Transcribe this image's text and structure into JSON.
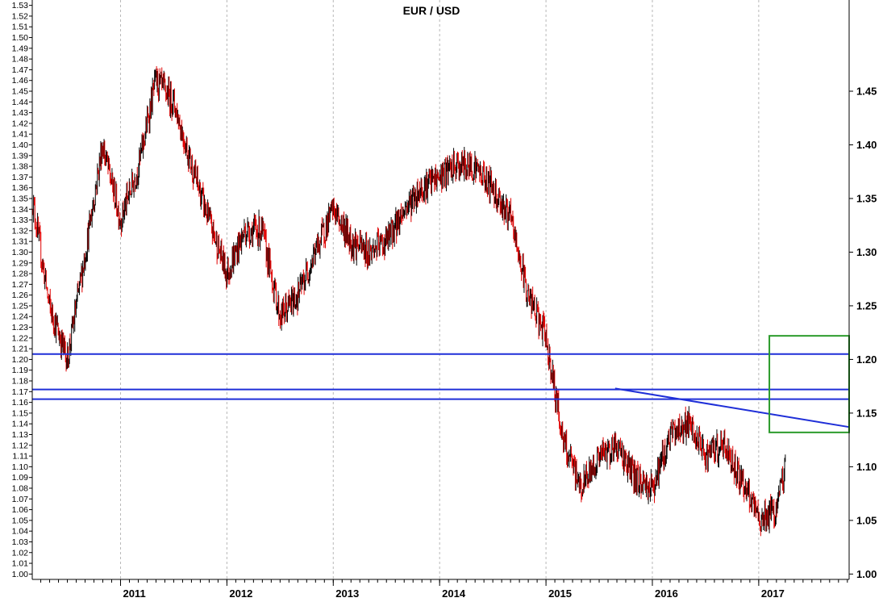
{
  "chart_data": {
    "type": "candlestick",
    "title": "EUR / USD",
    "xlabel": "",
    "ylabel": "",
    "ylim": [
      0.995,
      1.535
    ],
    "xlim": [
      2010.17,
      2017.85
    ],
    "grid": {
      "vertical": true,
      "horizontal": false
    },
    "colors": {
      "up": "#000000",
      "down": "#e00000",
      "support_lines": "#1f2fd8",
      "trendline": "#1f2fd8",
      "target_box": "#2a9a2a"
    },
    "y_ticks_left": [
      "1.00",
      "1.01",
      "1.02",
      "1.03",
      "1.04",
      "1.05",
      "1.06",
      "1.07",
      "1.08",
      "1.09",
      "1.10",
      "1.11",
      "1.12",
      "1.13",
      "1.14",
      "1.15",
      "1.16",
      "1.17",
      "1.18",
      "1.19",
      "1.20",
      "1.21",
      "1.22",
      "1.23",
      "1.24",
      "1.25",
      "1.26",
      "1.27",
      "1.28",
      "1.29",
      "1.30",
      "1.31",
      "1.32",
      "1.33",
      "1.34",
      "1.35",
      "1.36",
      "1.37",
      "1.38",
      "1.39",
      "1.40",
      "1.41",
      "1.42",
      "1.43",
      "1.44",
      "1.45",
      "1.46",
      "1.47",
      "1.48",
      "1.49",
      "1.50",
      "1.51",
      "1.52",
      "1.53"
    ],
    "y_ticks_right": [
      "1.00",
      "1.05",
      "1.10",
      "1.15",
      "1.20",
      "1.25",
      "1.30",
      "1.35",
      "1.40",
      "1.45"
    ],
    "x_ticks": [
      {
        "label": "2011",
        "x": 2011.0
      },
      {
        "label": "2012",
        "x": 2012.0
      },
      {
        "label": "2013",
        "x": 2013.0
      },
      {
        "label": "2014",
        "x": 2014.0
      },
      {
        "label": "2015",
        "x": 2015.0
      },
      {
        "label": "2016",
        "x": 2016.0
      },
      {
        "label": "2017",
        "x": 2017.0
      }
    ],
    "horizontal_lines": [
      1.205,
      1.172,
      1.163
    ],
    "trendline": {
      "x": [
        2015.65,
        2017.85
      ],
      "y": [
        1.173,
        1.137
      ]
    },
    "target_box": {
      "x": [
        2017.1,
        2017.85
      ],
      "y": [
        1.132,
        1.222
      ]
    },
    "series": [
      {
        "x": [
          2010.17,
          2010.33,
          2010.5,
          2010.67,
          2010.83,
          2011.0,
          2011.17,
          2011.33,
          2011.5,
          2011.67,
          2011.83,
          2012.0,
          2012.17,
          2012.33,
          2012.5,
          2012.67,
          2012.83,
          2013.0,
          2013.17,
          2013.33,
          2013.5,
          2013.67,
          2013.83,
          2014.0,
          2014.17,
          2014.33,
          2014.5,
          2014.67,
          2014.83,
          2015.0,
          2015.17,
          2015.33,
          2015.5,
          2015.67,
          2015.83,
          2016.0,
          2016.17,
          2016.33,
          2016.5,
          2016.67,
          2016.83,
          2017.0,
          2017.17,
          2017.25
        ],
        "y": [
          1.35,
          1.25,
          1.2,
          1.3,
          1.4,
          1.33,
          1.38,
          1.46,
          1.44,
          1.38,
          1.33,
          1.28,
          1.32,
          1.32,
          1.24,
          1.26,
          1.3,
          1.34,
          1.31,
          1.3,
          1.31,
          1.34,
          1.36,
          1.37,
          1.38,
          1.38,
          1.36,
          1.33,
          1.26,
          1.22,
          1.12,
          1.08,
          1.11,
          1.12,
          1.09,
          1.08,
          1.13,
          1.14,
          1.11,
          1.12,
          1.09,
          1.05,
          1.06,
          1.1
        ]
      }
    ]
  }
}
